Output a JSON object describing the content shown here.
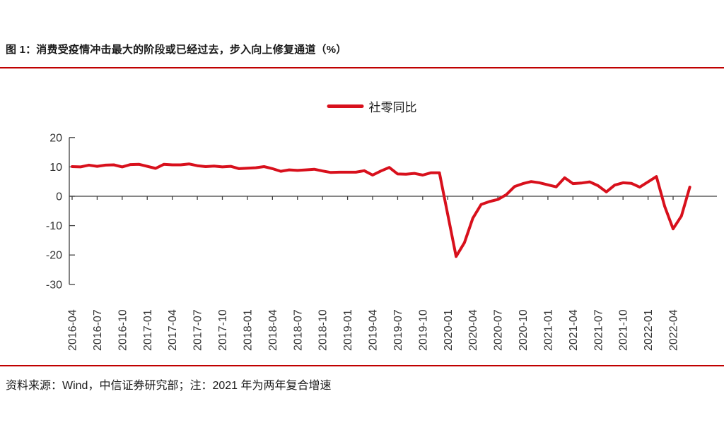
{
  "title": "图 1：消费受疫情冲击最大的阶段或已经过去，步入向上修复通道（%）",
  "source_note": "资料来源：Wind，中信证券研究部；注：2021 年为两年复合增速",
  "colors": {
    "accent_rule": "#c00000",
    "series_red": "#d8101c",
    "axis": "#3f3f3f",
    "tick_text": "#333333",
    "text": "#1a1a1a"
  },
  "chart_data": {
    "type": "line",
    "title": "",
    "legend": "社零同比",
    "legend_position": "top-center",
    "xlabel": "",
    "ylabel": "",
    "ylim": [
      -30,
      20
    ],
    "y_ticks": [
      20,
      10,
      0,
      -10,
      -20,
      -30
    ],
    "grid": false,
    "x_tick_labels": [
      "2016-04",
      "2016-07",
      "2016-10",
      "2017-01",
      "2017-04",
      "2017-07",
      "2017-10",
      "2018-01",
      "2018-04",
      "2018-07",
      "2018-10",
      "2019-01",
      "2019-04",
      "2019-07",
      "2019-10",
      "2020-01",
      "2020-04",
      "2020-07",
      "2020-10",
      "2021-01",
      "2021-04",
      "2021-07",
      "2021-10",
      "2022-01",
      "2022-04"
    ],
    "series": [
      {
        "name": "社零同比",
        "color": "#d8101c",
        "points": [
          [
            "2016-04",
            10.1
          ],
          [
            "2016-05",
            10.0
          ],
          [
            "2016-06",
            10.6
          ],
          [
            "2016-07",
            10.2
          ],
          [
            "2016-08",
            10.6
          ],
          [
            "2016-09",
            10.7
          ],
          [
            "2016-10",
            10.0
          ],
          [
            "2016-11",
            10.8
          ],
          [
            "2016-12",
            10.9
          ],
          [
            "2017-02",
            9.5
          ],
          [
            "2017-03",
            10.9
          ],
          [
            "2017-04",
            10.7
          ],
          [
            "2017-05",
            10.7
          ],
          [
            "2017-06",
            11.0
          ],
          [
            "2017-07",
            10.4
          ],
          [
            "2017-08",
            10.1
          ],
          [
            "2017-09",
            10.3
          ],
          [
            "2017-10",
            10.0
          ],
          [
            "2017-11",
            10.2
          ],
          [
            "2017-12",
            9.4
          ],
          [
            "2018-02",
            9.7
          ],
          [
            "2018-03",
            10.1
          ],
          [
            "2018-04",
            9.4
          ],
          [
            "2018-05",
            8.5
          ],
          [
            "2018-06",
            9.0
          ],
          [
            "2018-07",
            8.8
          ],
          [
            "2018-08",
            9.0
          ],
          [
            "2018-09",
            9.2
          ],
          [
            "2018-10",
            8.6
          ],
          [
            "2018-11",
            8.1
          ],
          [
            "2018-12",
            8.2
          ],
          [
            "2019-02",
            8.2
          ],
          [
            "2019-03",
            8.7
          ],
          [
            "2019-04",
            7.2
          ],
          [
            "2019-05",
            8.6
          ],
          [
            "2019-06",
            9.8
          ],
          [
            "2019-07",
            7.6
          ],
          [
            "2019-08",
            7.5
          ],
          [
            "2019-09",
            7.8
          ],
          [
            "2019-10",
            7.2
          ],
          [
            "2019-11",
            8.0
          ],
          [
            "2019-12",
            8.0
          ],
          [
            "2020-02",
            -20.5
          ],
          [
            "2020-03",
            -15.8
          ],
          [
            "2020-04",
            -7.5
          ],
          [
            "2020-05",
            -2.8
          ],
          [
            "2020-06",
            -1.8
          ],
          [
            "2020-07",
            -1.1
          ],
          [
            "2020-08",
            0.5
          ],
          [
            "2020-09",
            3.3
          ],
          [
            "2020-10",
            4.3
          ],
          [
            "2020-11",
            5.0
          ],
          [
            "2020-12",
            4.6
          ],
          [
            "2021-02",
            3.2
          ],
          [
            "2021-03",
            6.3
          ],
          [
            "2021-04",
            4.3
          ],
          [
            "2021-05",
            4.5
          ],
          [
            "2021-06",
            4.9
          ],
          [
            "2021-07",
            3.6
          ],
          [
            "2021-08",
            1.5
          ],
          [
            "2021-09",
            3.8
          ],
          [
            "2021-10",
            4.6
          ],
          [
            "2021-11",
            4.4
          ],
          [
            "2021-12",
            3.1
          ],
          [
            "2022-02",
            6.7
          ],
          [
            "2022-03",
            -3.5
          ],
          [
            "2022-04",
            -11.1
          ],
          [
            "2022-05",
            -6.7
          ],
          [
            "2022-06",
            3.1
          ]
        ]
      }
    ]
  }
}
